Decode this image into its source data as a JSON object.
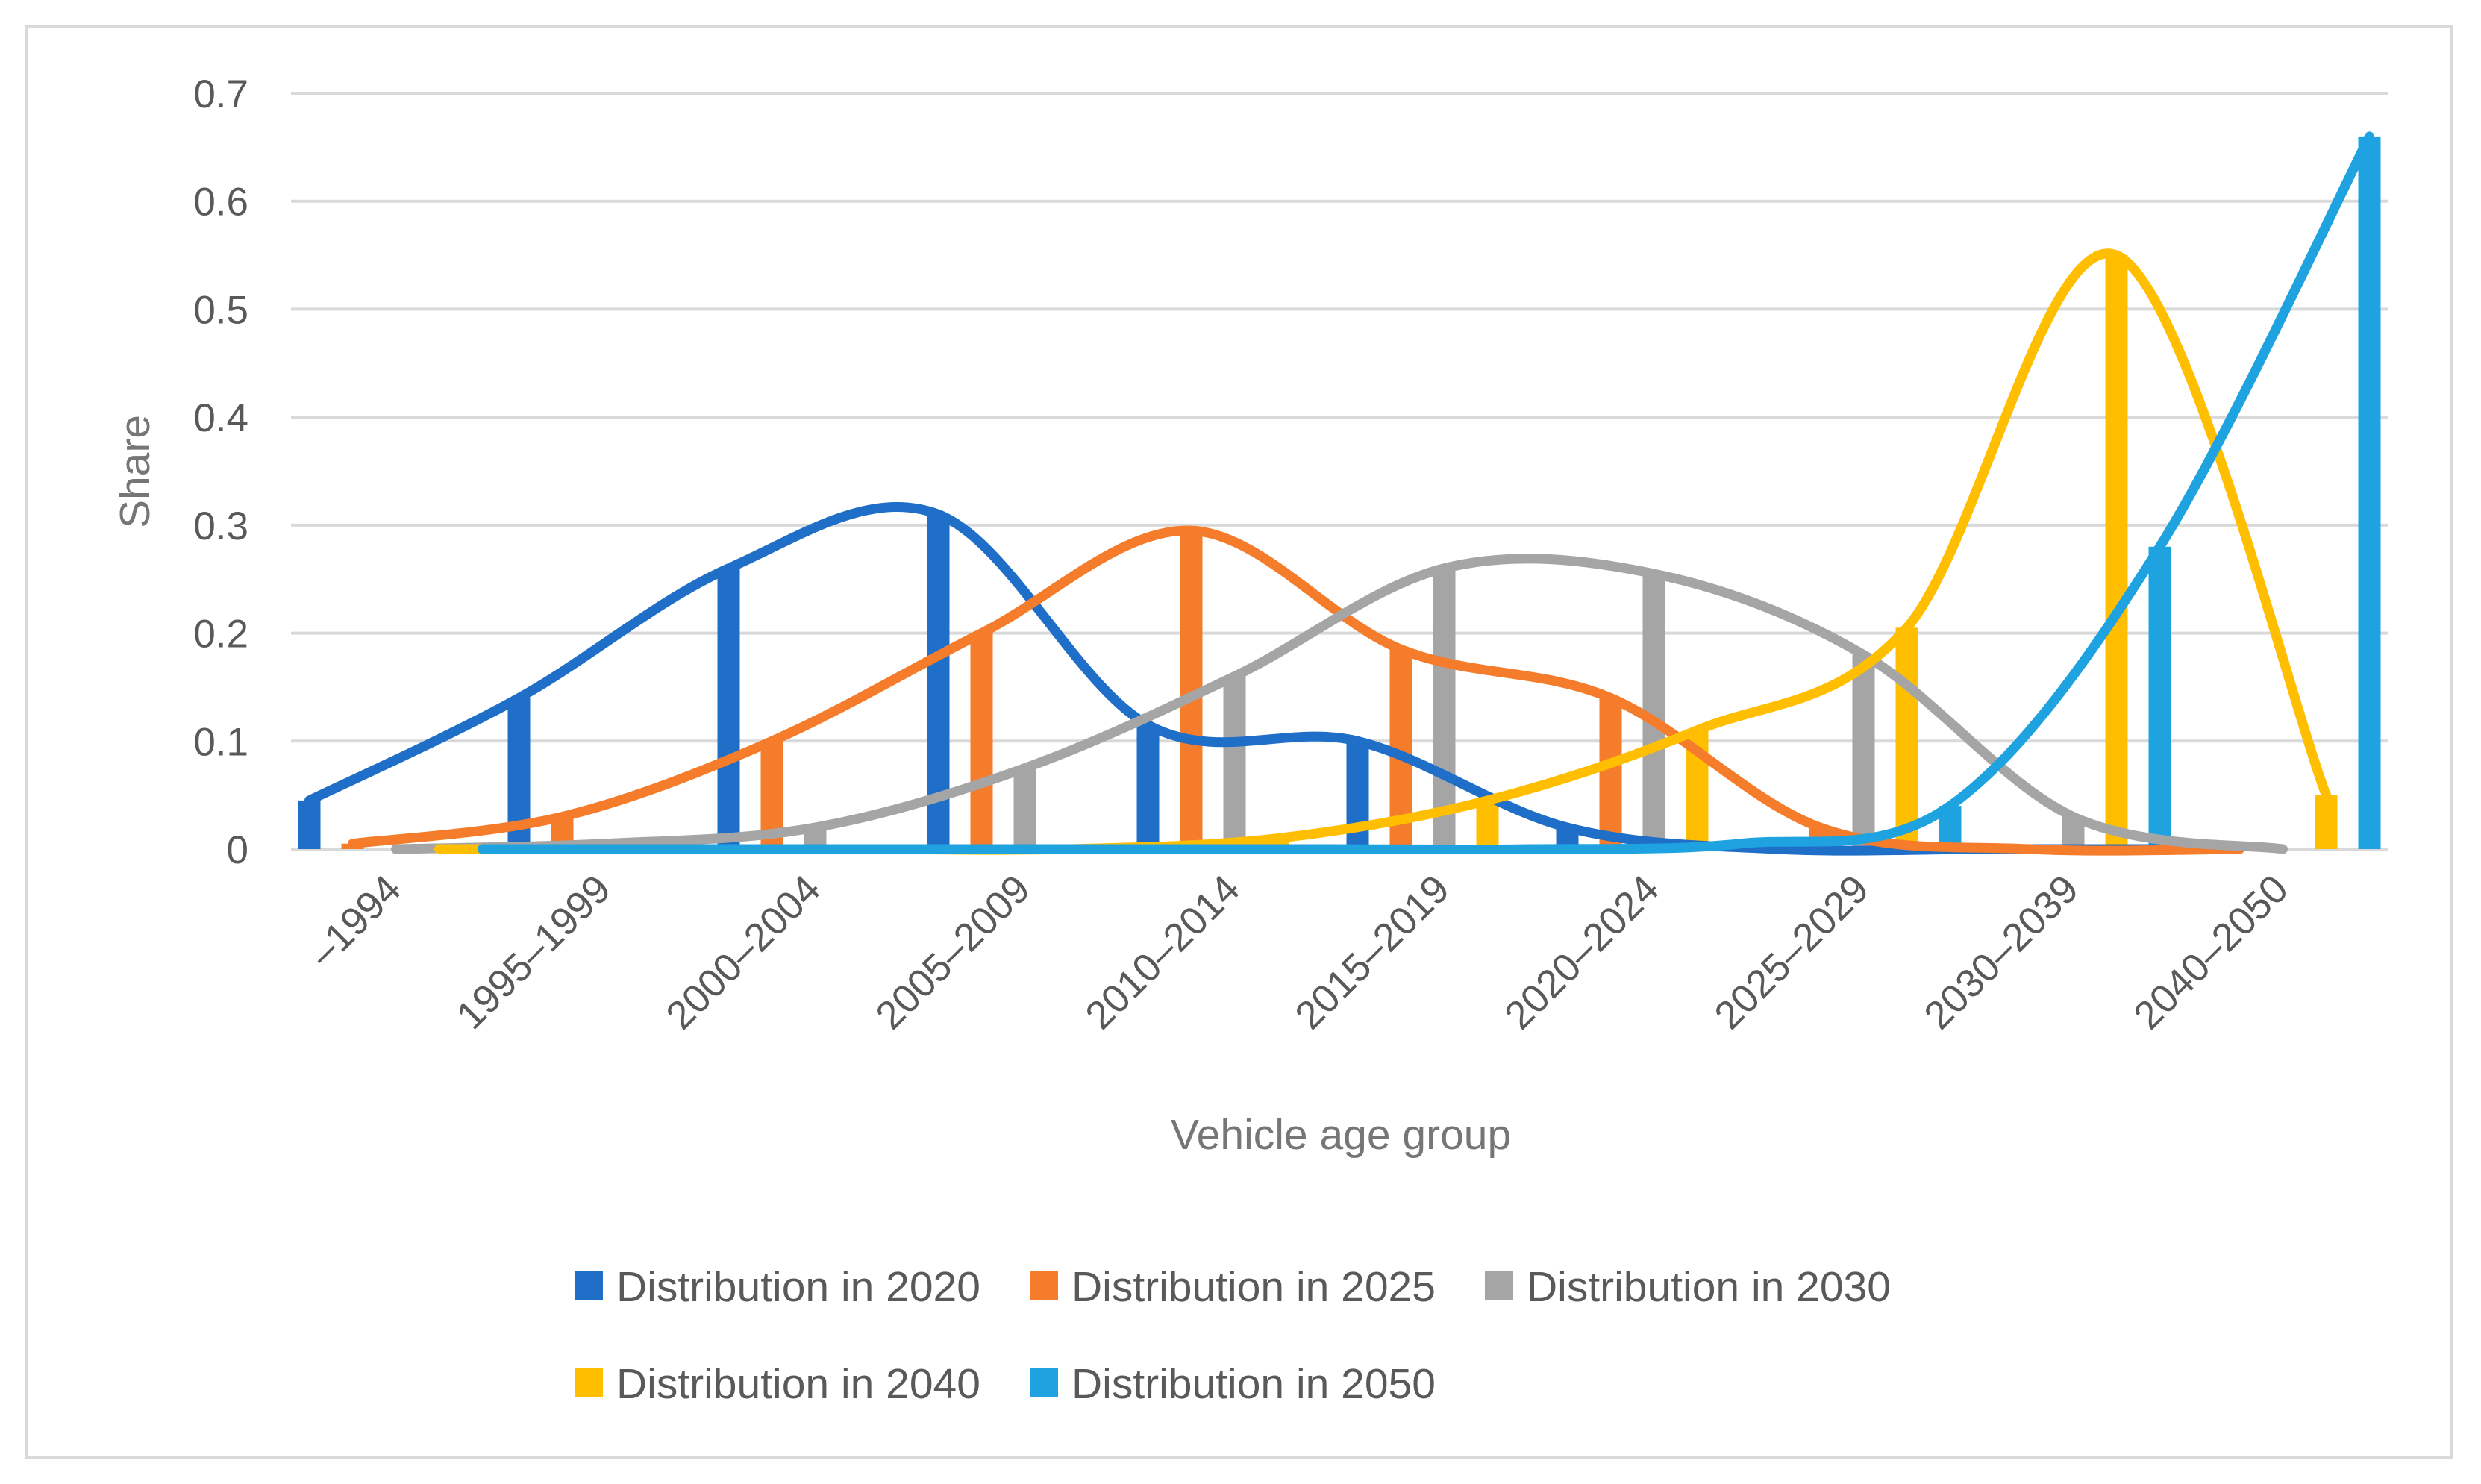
{
  "chart_data": {
    "type": "bar",
    "overlay": "smoothed-line",
    "title": "",
    "xlabel": "Vehicle age group",
    "ylabel": "Share",
    "ylim": [
      0,
      0.7
    ],
    "yticks": [
      "0",
      "0.1",
      "0.2",
      "0.3",
      "0.4",
      "0.5",
      "0.6",
      "0.7"
    ],
    "grid": true,
    "legend_position": "bottom",
    "categories": [
      "–1994",
      "1995–1999",
      "2000–2004",
      "2005–2009",
      "2010–2014",
      "2015–2019",
      "2020–2024",
      "2025–2029",
      "2030–2039",
      "2040–2050"
    ],
    "series": [
      {
        "name": "Distribution in 2020",
        "color": "#1f6fc8",
        "values": [
          0.045,
          0.14,
          0.26,
          0.31,
          0.115,
          0.1,
          0.02,
          0.0,
          0.0,
          0.0
        ]
      },
      {
        "name": "Distribution in 2025",
        "color": "#f57c2a",
        "values": [
          0.005,
          0.03,
          0.1,
          0.2,
          0.295,
          0.185,
          0.14,
          0.02,
          0.0,
          0.0
        ]
      },
      {
        "name": "Distribution in 2030",
        "color": "#a5a5a5",
        "values": [
          0.0,
          0.005,
          0.02,
          0.075,
          0.16,
          0.26,
          0.255,
          0.18,
          0.03,
          0.0
        ]
      },
      {
        "name": "Distribution in 2040",
        "color": "#ffbf00",
        "values": [
          0.0,
          0.0,
          0.0,
          0.0,
          0.01,
          0.045,
          0.11,
          0.205,
          0.55,
          0.05
        ]
      },
      {
        "name": "Distribution in 2050",
        "color": "#1fa3e0",
        "values": [
          0.0,
          0.0,
          0.0,
          0.0,
          0.0,
          0.0,
          0.005,
          0.04,
          0.28,
          0.66
        ]
      }
    ]
  }
}
